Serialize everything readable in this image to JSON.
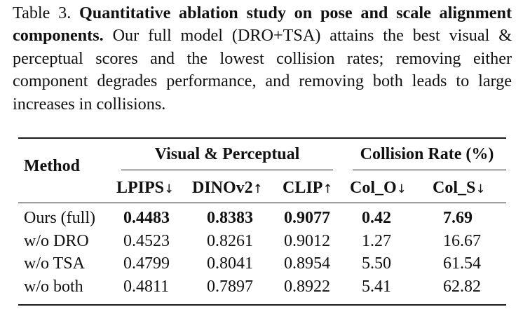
{
  "caption": {
    "label": "Table 3.",
    "title": "Quantitative ablation study on pose and scale alignment components.",
    "body": "Our full model (DRO+TSA) attains the best visual & perceptual scores and the lowest collision rates; removing either component degrades performance, and removing both leads to large increases in collisions."
  },
  "table": {
    "method_header": "Method",
    "group_headers": [
      "Visual & Perceptual",
      "Collision Rate (%)"
    ],
    "columns": [
      {
        "name": "LPIPS",
        "arrow": "↓"
      },
      {
        "name": "DINOv2",
        "arrow": "↑"
      },
      {
        "name": "CLIP",
        "arrow": "↑"
      },
      {
        "name": "Col_O",
        "arrow": "↓"
      },
      {
        "name": "Col_S",
        "arrow": "↓"
      }
    ],
    "rows": [
      {
        "method": "Ours (full)",
        "values": [
          "0.4483",
          "0.8383",
          "0.9077",
          "0.42",
          "7.69"
        ],
        "bold": true
      },
      {
        "method": "w/o DRO",
        "values": [
          "0.4523",
          "0.8261",
          "0.9012",
          "1.27",
          "16.67"
        ],
        "bold": false
      },
      {
        "method": "w/o TSA",
        "values": [
          "0.4799",
          "0.8041",
          "0.8954",
          "5.50",
          "61.54"
        ],
        "bold": false
      },
      {
        "method": "w/o both",
        "values": [
          "0.4811",
          "0.7897",
          "0.8922",
          "5.41",
          "62.82"
        ],
        "bold": false
      }
    ]
  }
}
